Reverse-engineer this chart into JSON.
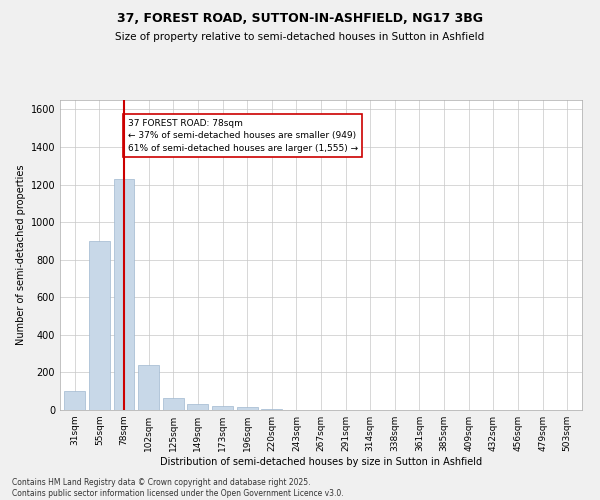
{
  "title1": "37, FOREST ROAD, SUTTON-IN-ASHFIELD, NG17 3BG",
  "title2": "Size of property relative to semi-detached houses in Sutton in Ashfield",
  "xlabel": "Distribution of semi-detached houses by size in Sutton in Ashfield",
  "ylabel": "Number of semi-detached properties",
  "categories": [
    "31sqm",
    "55sqm",
    "78sqm",
    "102sqm",
    "125sqm",
    "149sqm",
    "173sqm",
    "196sqm",
    "220sqm",
    "243sqm",
    "267sqm",
    "291sqm",
    "314sqm",
    "338sqm",
    "361sqm",
    "385sqm",
    "409sqm",
    "432sqm",
    "456sqm",
    "479sqm",
    "503sqm"
  ],
  "values": [
    100,
    900,
    1230,
    240,
    65,
    30,
    20,
    15,
    5,
    0,
    0,
    0,
    0,
    0,
    0,
    0,
    0,
    0,
    0,
    0,
    0
  ],
  "bar_color": "#c8d8e8",
  "bar_edgecolor": "#a0b8d0",
  "vline_x": 2,
  "vline_color": "#cc0000",
  "annotation_text": "37 FOREST ROAD: 78sqm\n← 37% of semi-detached houses are smaller (949)\n61% of semi-detached houses are larger (1,555) →",
  "annotation_box_color": "#cc0000",
  "ylim": [
    0,
    1650
  ],
  "yticks": [
    0,
    200,
    400,
    600,
    800,
    1000,
    1200,
    1400,
    1600
  ],
  "footnote": "Contains HM Land Registry data © Crown copyright and database right 2025.\nContains public sector information licensed under the Open Government Licence v3.0.",
  "bg_color": "#f0f0f0",
  "plot_bg_color": "#ffffff",
  "grid_color": "#c8c8c8"
}
